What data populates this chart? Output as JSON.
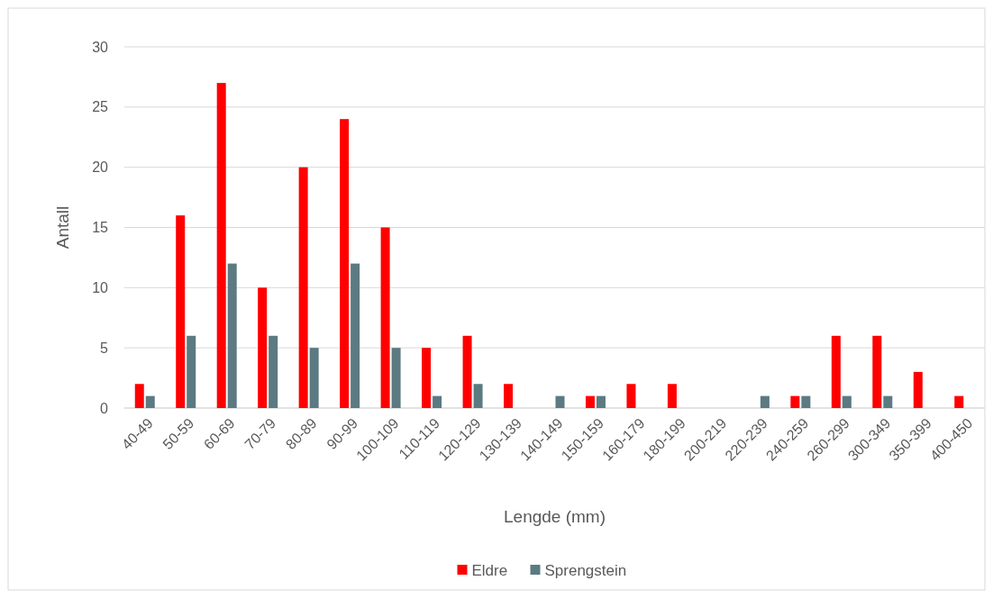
{
  "chart_data": {
    "type": "bar",
    "xlabel": "Lengde (mm)",
    "ylabel": "Antall",
    "categories": [
      "40-49",
      "50-59",
      "60-69",
      "70-79",
      "80-89",
      "90-99",
      "100-109",
      "110-119",
      "120-129",
      "130-139",
      "140-149",
      "150-159",
      "160-179",
      "180-199",
      "200-219",
      "220-239",
      "240-259",
      "260-299",
      "300-349",
      "350-399",
      "400-450"
    ],
    "series": [
      {
        "name": "Eldre",
        "color": "#ff0000",
        "values": [
          2,
          16,
          27,
          10,
          20,
          24,
          15,
          5,
          6,
          2,
          null,
          1,
          2,
          2,
          null,
          null,
          1,
          6,
          6,
          3,
          1
        ]
      },
      {
        "name": "Sprengstein",
        "color": "#5b7a82",
        "values": [
          1,
          6,
          12,
          6,
          5,
          12,
          5,
          1,
          2,
          null,
          1,
          1,
          null,
          null,
          null,
          1,
          1,
          1,
          1,
          null,
          null
        ]
      }
    ],
    "ylim": [
      0,
      30
    ],
    "yticks": [
      0,
      5,
      10,
      15,
      20,
      25,
      30
    ],
    "grid": "y",
    "legend": "bottom"
  }
}
